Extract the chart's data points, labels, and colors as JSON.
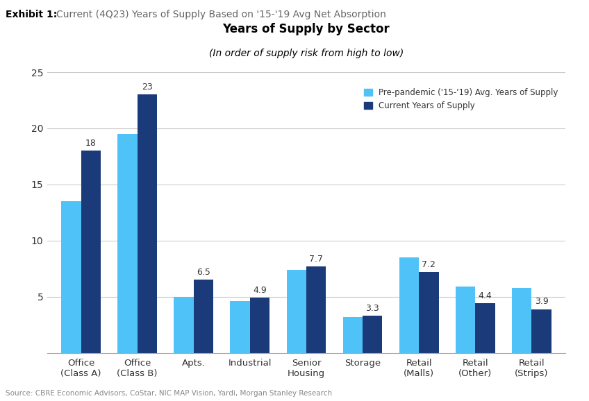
{
  "title": "Years of Supply by Sector",
  "subtitle": "(In order of supply risk from high to low)",
  "exhibit_label": "Exhibit 1:",
  "exhibit_subtitle": "Current (4Q23) Years of Supply Based on '15-'19 Avg Net Absorption",
  "source": "Source: CBRE Economic Advisors, CoStar, NIC MAP Vision, Yardi, Morgan Stanley Research",
  "categories": [
    "Office\n(Class A)",
    "Office\n(Class B)",
    "Apts.",
    "Industrial",
    "Senior\nHousing",
    "Storage",
    "Retail\n(Malls)",
    "Retail\n(Other)",
    "Retail\n(Strips)"
  ],
  "prepandemic_values": [
    13.5,
    19.5,
    5.0,
    4.6,
    7.4,
    3.2,
    8.5,
    5.9,
    5.8
  ],
  "current_values": [
    18,
    23,
    6.5,
    4.9,
    7.7,
    3.3,
    7.2,
    4.4,
    3.9
  ],
  "current_labels": [
    "18",
    "23",
    "6.5",
    "4.9",
    "7.7",
    "3.3",
    "7.2",
    "4.4",
    "3.9"
  ],
  "color_prepandemic": "#4FC3F7",
  "color_current": "#1A3A7A",
  "ylim": [
    0,
    25
  ],
  "yticks": [
    5,
    10,
    15,
    20,
    25
  ],
  "legend_prepandemic": "Pre-pandemic ('15-'19) Avg. Years of Supply",
  "legend_current": "Current Years of Supply",
  "background_color": "#ffffff",
  "bar_width": 0.35
}
